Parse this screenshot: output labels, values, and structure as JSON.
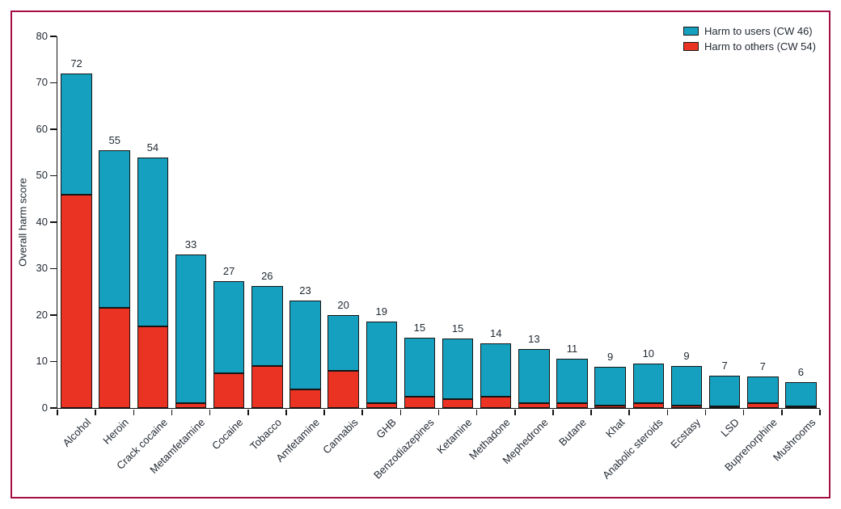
{
  "figure": {
    "frame_border_color": "#a50d45",
    "background_color": "#ffffff",
    "text_color": "#232a33"
  },
  "chart_data": {
    "type": "bar",
    "stacked": true,
    "title": "",
    "xlabel": "",
    "ylabel": "Overall harm score",
    "ylim": [
      0,
      80
    ],
    "yticks": [
      0,
      10,
      20,
      30,
      40,
      50,
      60,
      70,
      80
    ],
    "grid": false,
    "legend_position": "top-right",
    "bar_outline_color": "#151515",
    "categories": [
      "Alcohol",
      "Heroin",
      "Crack cocaine",
      "Metamfetamine",
      "Cocaine",
      "Tobacco",
      "Amfetamine",
      "Cannabis",
      "GHB",
      "Benzodiazepines",
      "Ketamine",
      "Methadone",
      "Mephedrone",
      "Butane",
      "Khat",
      "Anabolic steroids",
      "Ecstasy",
      "LSD",
      "Buprenorphine",
      "Mushrooms"
    ],
    "bar_value_labels": [
      72,
      55,
      54,
      33,
      27,
      26,
      23,
      20,
      19,
      15,
      15,
      14,
      13,
      11,
      9,
      10,
      9,
      7,
      7,
      6
    ],
    "stack_bottom_series_index": 1,
    "series": [
      {
        "name": "Harm to users (CW 46)",
        "color": "#14a0be",
        "values": [
          26,
          33.9,
          36.5,
          32,
          19.8,
          17.3,
          19.2,
          12,
          17.6,
          12.7,
          12.9,
          11.5,
          11.7,
          9.6,
          8.4,
          8.6,
          8.6,
          6.7,
          5.7,
          5.3
        ]
      },
      {
        "name": "Harm to others (CW 54)",
        "color": "#ea3323",
        "values": [
          46,
          21.5,
          17.5,
          1,
          7.5,
          9,
          4,
          8,
          1,
          2.5,
          2,
          2.5,
          1,
          1,
          0.5,
          1,
          0.5,
          0.3,
          1,
          0.2
        ]
      }
    ]
  }
}
